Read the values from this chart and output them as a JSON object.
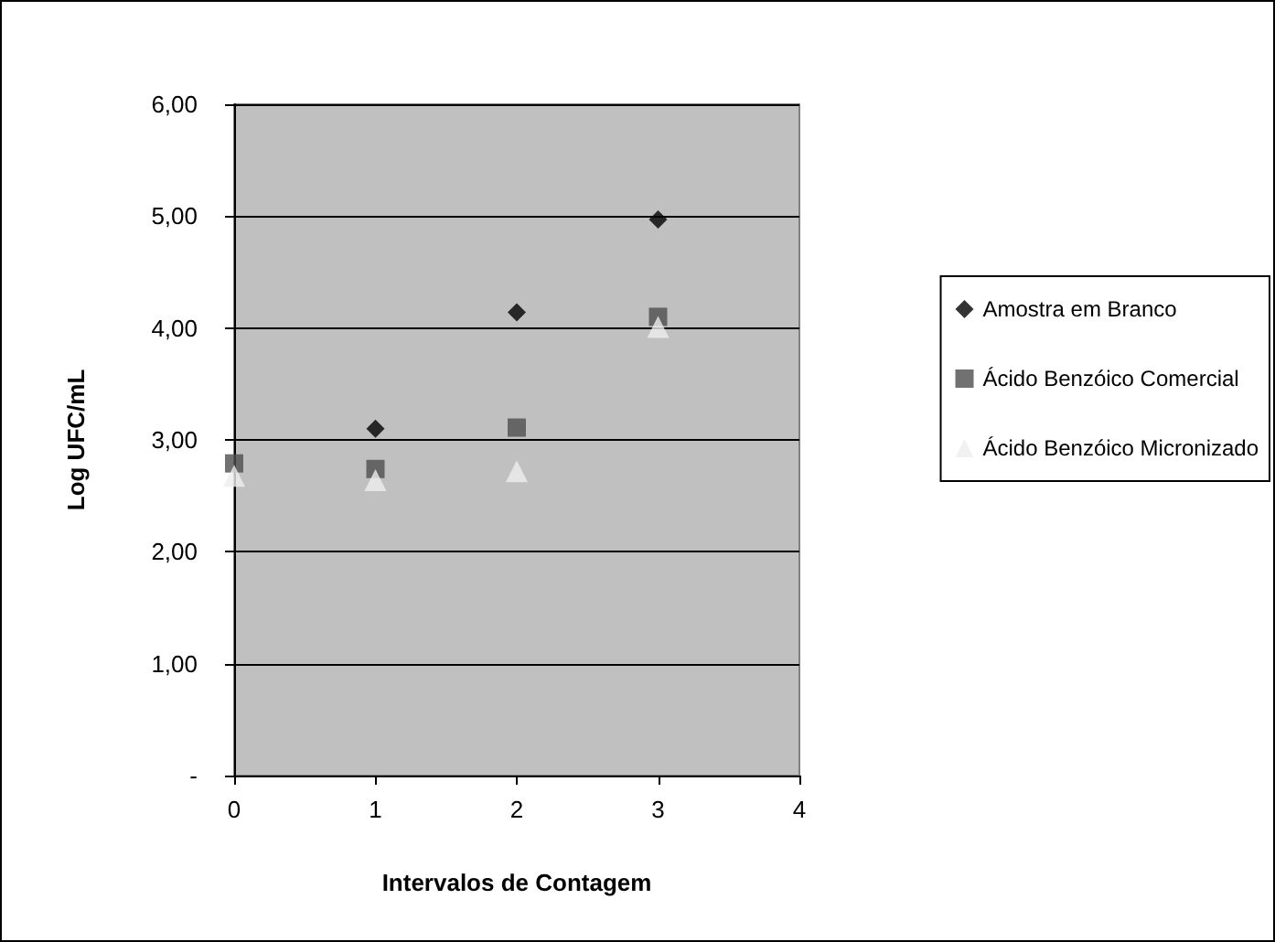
{
  "chart_data": {
    "type": "scatter",
    "xlabel": "Intervalos de Contagem",
    "ylabel": "Log UFC/mL",
    "x": [
      0,
      1,
      2,
      3
    ],
    "series": [
      {
        "name": "Amostra em Branco",
        "color": "#000000",
        "marker": "diamond",
        "values": [
          null,
          3.1,
          4.14,
          4.97
        ]
      },
      {
        "name": "Ácido Benzóico Comercial",
        "color": "#4d4d4d",
        "marker": "square",
        "values": [
          2.79,
          2.74,
          3.11,
          4.1
        ]
      },
      {
        "name": "Ácido Benzóico Micronizado",
        "color": "#eeeeee",
        "marker": "triangle",
        "values": [
          2.68,
          2.64,
          2.72,
          4.01
        ]
      }
    ],
    "xlim": [
      0,
      4
    ],
    "xticks": [
      0,
      1,
      2,
      3,
      4
    ],
    "ylim": [
      0,
      6
    ],
    "yticks": [
      {
        "value": 0,
        "label": "-"
      },
      {
        "value": 1,
        "label": "1,00"
      },
      {
        "value": 2,
        "label": "2,00"
      },
      {
        "value": 3,
        "label": "3,00"
      },
      {
        "value": 4,
        "label": "4,00"
      },
      {
        "value": 5,
        "label": "5,00"
      },
      {
        "value": 6,
        "label": "6,00"
      }
    ],
    "grid": "y",
    "legend": "right"
  }
}
